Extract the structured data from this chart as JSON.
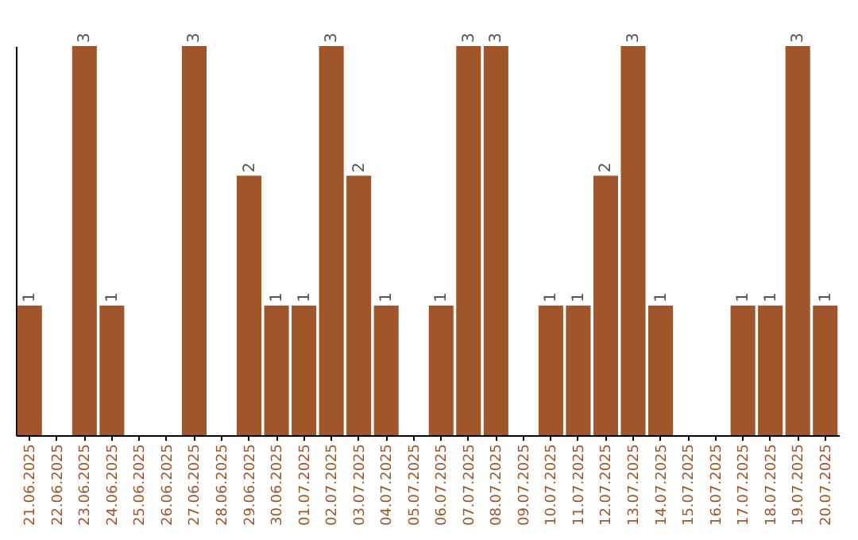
{
  "chart_data": {
    "type": "bar",
    "categories": [
      "21.06.2025",
      "22.06.2025",
      "23.06.2025",
      "24.06.2025",
      "25.06.2025",
      "26.06.2025",
      "27.06.2025",
      "28.06.2025",
      "29.06.2025",
      "30.06.2025",
      "01.07.2025",
      "02.07.2025",
      "03.07.2025",
      "04.07.2025",
      "05.07.2025",
      "06.07.2025",
      "07.07.2025",
      "08.07.2025",
      "09.07.2025",
      "10.07.2025",
      "11.07.2025",
      "12.07.2025",
      "13.07.2025",
      "14.07.2025",
      "15.07.2025",
      "16.07.2025",
      "17.07.2025",
      "18.07.2025",
      "19.07.2025",
      "20.07.2025"
    ],
    "values": [
      1,
      null,
      3,
      1,
      null,
      null,
      3,
      null,
      2,
      1,
      1,
      3,
      2,
      1,
      null,
      1,
      3,
      3,
      null,
      1,
      1,
      2,
      3,
      1,
      null,
      null,
      1,
      1,
      3,
      1
    ],
    "color": "#a0562a",
    "data_labels": true,
    "grid": false
  }
}
